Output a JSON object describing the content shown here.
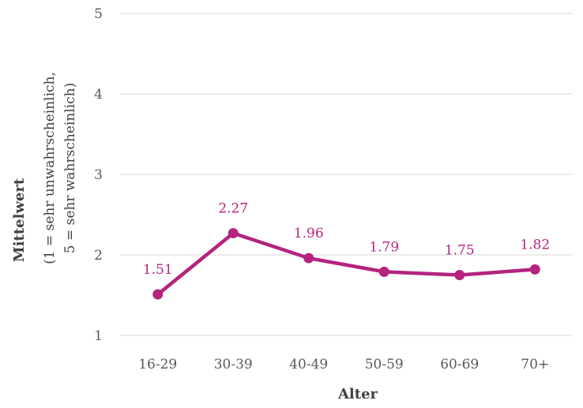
{
  "chart_data": {
    "type": "line",
    "categories": [
      "16-29",
      "30-39",
      "40-49",
      "50-59",
      "60-69",
      "70+"
    ],
    "series": [
      {
        "values": [
          1.51,
          2.27,
          1.96,
          1.79,
          1.75,
          1.82
        ],
        "labels": [
          "1.51",
          "2.27",
          "1.96",
          "1.79",
          "1.75",
          "1.82"
        ],
        "color": "#B5237F"
      }
    ],
    "y_ticks": [
      "1",
      "2",
      "3",
      "4",
      "5"
    ],
    "ylim": [
      1,
      5
    ],
    "xlabel": "Alter",
    "ylabel": "Mittelwert",
    "ylabel_line2": "(1 = sehr unwahrscheinlich,",
    "ylabel_line3": "5 = sehr wahrscheinlich)",
    "grid": true,
    "legend": "none"
  }
}
